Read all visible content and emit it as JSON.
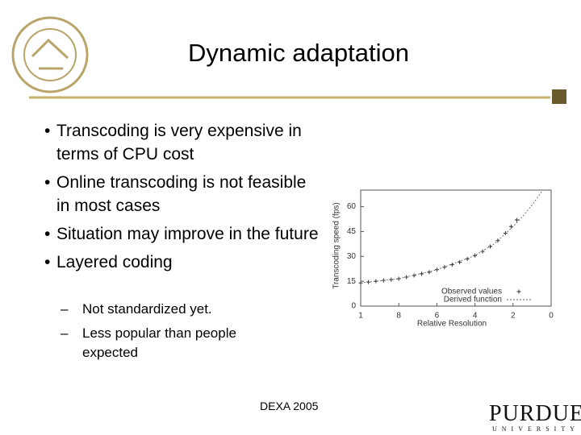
{
  "slide": {
    "title": "Dynamic adaptation",
    "bullets": [
      "Transcoding is very expensive in terms of CPU cost",
      "Online transcoding is not feasible in most cases",
      "Situation may improve in the future",
      "Layered coding"
    ],
    "sub_bullets": [
      "Not standardized yet.",
      "Less popular than people expected"
    ],
    "footer": "DEXA 2005",
    "logo": {
      "name": "PURDUE",
      "subtitle": "UNIVERSITY"
    }
  },
  "chart_data": {
    "type": "scatter",
    "xlabel": "Relative Resolution",
    "ylabel": "Transcoding speed (fps)",
    "xlim": [
      10,
      0
    ],
    "ylim": [
      0,
      70
    ],
    "xticks": [
      {
        "value": 10,
        "label": "1"
      },
      8,
      6,
      4,
      2,
      0
    ],
    "yticks": [
      0,
      15,
      30,
      45,
      60
    ],
    "legend": "lower right",
    "series": [
      {
        "name": "Observed values",
        "color": "#333333",
        "x": [
          10,
          9.6,
          9.2,
          8.8,
          8.4,
          8,
          7.6,
          7.2,
          6.8,
          6.4,
          6,
          5.6,
          5.2,
          4.8,
          4.4,
          4,
          3.6,
          3.2,
          2.8,
          2.4,
          2.1,
          1.8
        ],
        "values": [
          14,
          14.5,
          15,
          15.5,
          16,
          16.5,
          17.5,
          18.5,
          19.5,
          20.5,
          22,
          23.5,
          25,
          26.5,
          28.5,
          30.5,
          33,
          36,
          39.5,
          44,
          48,
          52
        ]
      },
      {
        "name": "Derived function",
        "color": "#555555",
        "x": [
          10,
          8,
          6,
          4,
          3,
          2,
          1.5,
          1,
          0.5
        ],
        "values": [
          14,
          16.5,
          22,
          30.5,
          37.5,
          48,
          54,
          61,
          69
        ]
      }
    ]
  }
}
